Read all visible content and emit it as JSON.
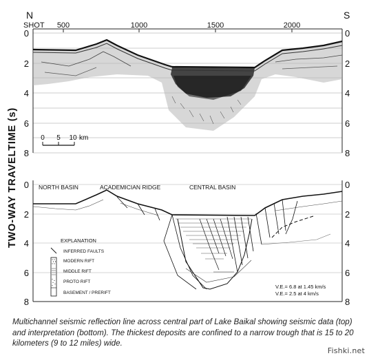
{
  "compass": {
    "north": "N",
    "south": "S"
  },
  "shot_label": "SHOT",
  "shot_ticks": [
    "500",
    "1000",
    "1500",
    "2000"
  ],
  "top_time_ticks": [
    "0",
    "2",
    "4",
    "6",
    "8"
  ],
  "bottom_time_ticks": [
    "0",
    "2",
    "4",
    "6",
    "8"
  ],
  "axis_title": "TWO-WAY TRAVELTIME (s)",
  "scale_bar": {
    "ticks": [
      "0",
      "5",
      "10"
    ],
    "unit": "km"
  },
  "regions": [
    "NORTH BASIN",
    "ACADEMICIAN RIDGE",
    "CENTRAL BASIN"
  ],
  "explanation": {
    "title": "EXPLANATION",
    "items": [
      "INFERRED FAULTS",
      "MODERN RIFT",
      "MIDDLE RIFT",
      "PROTO RIFT",
      "BASEMENT / PRERIFT"
    ]
  },
  "velocity_notes": [
    "V.E.= 6.8 at 1.45 km/s",
    "V.E.= 2.5 at 4 km/s"
  ],
  "caption": "Multichannel seismic reflection line across central part of Lake Baikal showing seismic data (top) and interpretation (bottom).  The thickest deposits are confined to a narrow trough that is 15 to 20 kilometers (9 to 12 miles) wide.",
  "watermark": "Fishki.net",
  "icons": {
    "fault": "fault-line-icon",
    "modern": "dotted-pattern-icon",
    "middle": "dashed-pattern-icon",
    "proto": "grain-pattern-icon",
    "basement": "blank-pattern-icon"
  }
}
